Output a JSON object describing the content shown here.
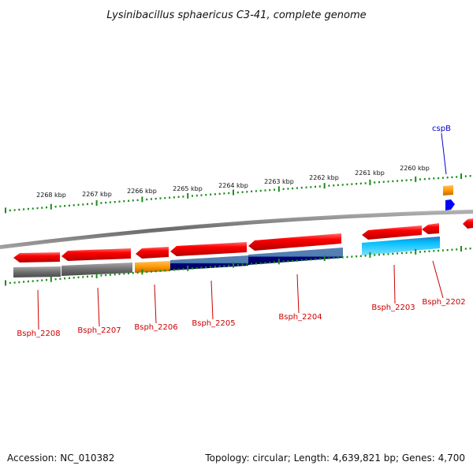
{
  "title": "Lysinibacillus sphaericus C3-41, complete genome",
  "footer": {
    "accession": "Accession: NC_010382",
    "summary": "Topology: circular; Length: 4,639,821 bp; Genes: 4,700"
  },
  "kbp_labels": [
    "2268 kbp",
    "2267 kbp",
    "2266 kbp",
    "2265 kbp",
    "2264 kbp",
    "2263 kbp",
    "2262 kbp",
    "2261 kbp",
    "2260 kbp"
  ],
  "loci": [
    {
      "name": "Bsph_2208",
      "color": "#cc0000"
    },
    {
      "name": "Bsph_2207",
      "color": "#cc0000"
    },
    {
      "name": "Bsph_2206",
      "color": "#cc0000"
    },
    {
      "name": "Bsph_2205",
      "color": "#cc0000"
    },
    {
      "name": "Bsph_2204",
      "color": "#cc0000"
    },
    {
      "name": "Bsph_2203",
      "color": "#cc0000"
    },
    {
      "name": "Bsph_2202",
      "color": "#cc0000"
    },
    {
      "name": "cspB",
      "color": "#0000cc"
    }
  ],
  "colors": {
    "cds": "#ff0000",
    "gene_gray": "#707070",
    "gene_orange": "#ff9900",
    "gene_navy": "#000080",
    "gene_steel": "#4f7fb0",
    "gene_cyan": "#00bfff",
    "small_rna": "#0000ff",
    "tick": "#1a8c1a",
    "backbone": "#8a8a8a"
  }
}
